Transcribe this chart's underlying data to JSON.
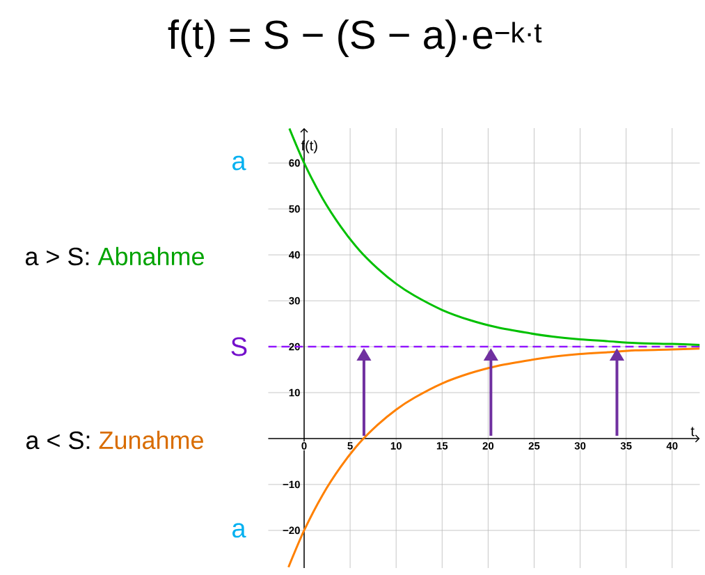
{
  "chart_data": {
    "type": "line",
    "title": "f(t) = S − (S − a)·e$^{−k·t}$",
    "xlabel": "t",
    "ylabel": "f(t)",
    "xlim": [
      -3.9,
      43
    ],
    "ylim": [
      -28.2,
      67.6
    ],
    "xticks": [
      0,
      5,
      10,
      15,
      20,
      25,
      30,
      35,
      40
    ],
    "yticks": [
      {
        "value": -20,
        "label": "−20"
      },
      {
        "value": -10,
        "label": "−10"
      },
      10,
      20,
      30,
      40,
      50,
      60
    ],
    "grid": true,
    "series": [
      {
        "name": "Abnahme",
        "color": "#00c000",
        "x": [
          -1.6,
          0,
          2,
          4,
          6,
          8,
          10,
          12,
          15,
          18,
          21,
          24,
          27,
          30,
          33,
          36,
          40,
          43
        ],
        "values": [
          67.5,
          60,
          52.3,
          46.1,
          41.0,
          37.0,
          33.7,
          31.1,
          28.0,
          25.8,
          24.2,
          23.1,
          22.2,
          21.6,
          21.2,
          20.8,
          20.6,
          20.4
        ]
      },
      {
        "name": "Zunahme",
        "color": "#ff8000",
        "x": [
          -1.7,
          0,
          2,
          4,
          6,
          8,
          10,
          12,
          15,
          18,
          21,
          24,
          27,
          30,
          33,
          36,
          40,
          43
        ],
        "values": [
          -28.0,
          -20,
          -12.3,
          -6.1,
          -1.0,
          3.0,
          6.3,
          8.9,
          12.0,
          14.2,
          15.8,
          16.9,
          17.8,
          18.4,
          18.8,
          19.2,
          19.4,
          19.6
        ]
      }
    ],
    "ref_lines": [
      {
        "axis": "y",
        "value": 20,
        "label": "S",
        "color": "#9013fe",
        "line_style": "dashed"
      }
    ],
    "annotations": [
      "a > S:",
      "a < S:",
      {
        "text": "a",
        "x": 0,
        "y": 60
      },
      {
        "text": "a",
        "x": 0,
        "y": -20
      }
    ]
  }
}
